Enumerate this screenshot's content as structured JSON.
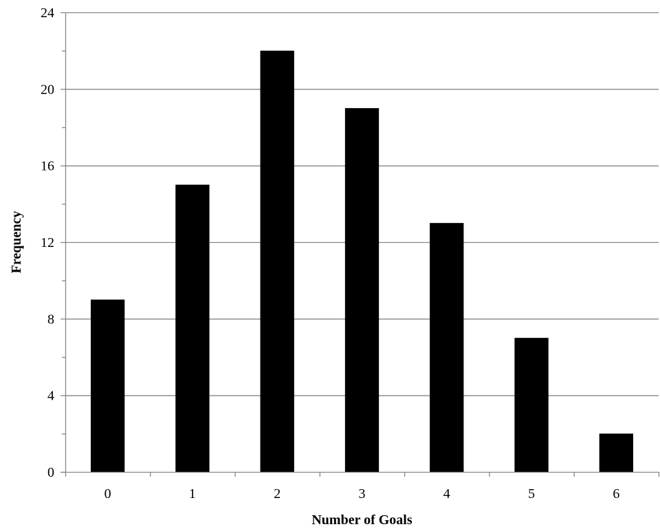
{
  "chart_data": {
    "type": "bar",
    "title": "",
    "xlabel": "Number of Goals",
    "ylabel": "Frequency",
    "categories": [
      "0",
      "1",
      "2",
      "3",
      "4",
      "5",
      "6"
    ],
    "values": [
      9,
      15,
      22,
      19,
      13,
      7,
      2
    ],
    "ylim": [
      0,
      24
    ],
    "yticks": [
      "0",
      "4",
      "8",
      "12",
      "16",
      "20",
      "24"
    ],
    "minor_tick_step": 2,
    "grid": true,
    "legend": "none",
    "bar_color": "#000000",
    "grid_color": "#868686"
  }
}
